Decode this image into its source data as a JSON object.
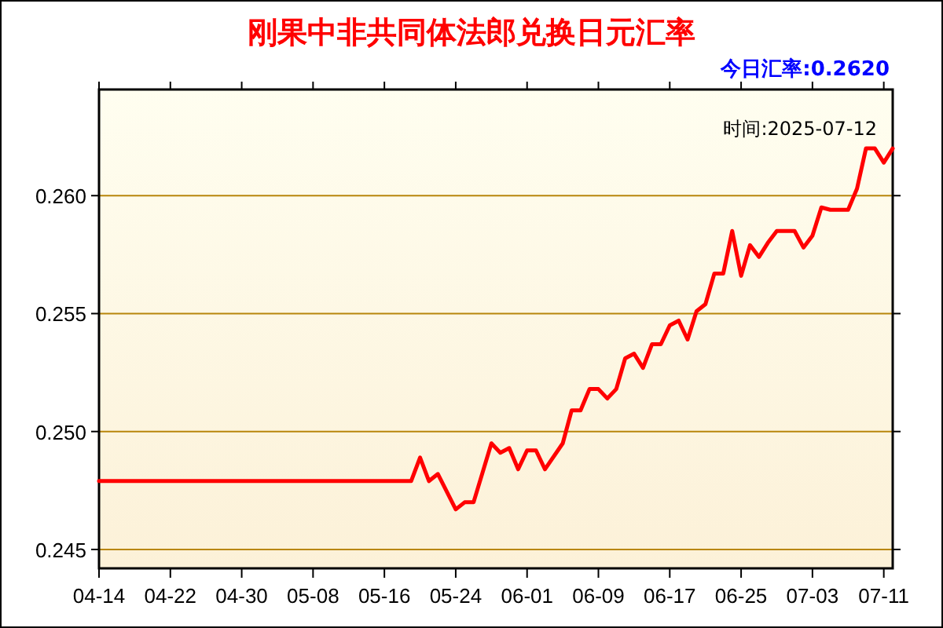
{
  "chart_data": {
    "type": "line",
    "title": "刚果中非共同体法郎兑换日元汇率",
    "annotations": [
      "今日汇率:0.2620",
      "时间:2025-07-12"
    ],
    "x": [
      "2025-04-14",
      "2025-05-19",
      "2025-05-20",
      "2025-05-21",
      "2025-05-22",
      "2025-05-24",
      "2025-05-25",
      "2025-05-26",
      "2025-05-28",
      "2025-05-29",
      "2025-05-30",
      "2025-05-31",
      "2025-06-01",
      "2025-06-02",
      "2025-06-03",
      "2025-06-05",
      "2025-06-06",
      "2025-06-07",
      "2025-06-08",
      "2025-06-09",
      "2025-06-10",
      "2025-06-11",
      "2025-06-12",
      "2025-06-13",
      "2025-06-14",
      "2025-06-15",
      "2025-06-16",
      "2025-06-17",
      "2025-06-18",
      "2025-06-19",
      "2025-06-20",
      "2025-06-21",
      "2025-06-22",
      "2025-06-23",
      "2025-06-24",
      "2025-06-25",
      "2025-06-26",
      "2025-06-27",
      "2025-06-28",
      "2025-06-29",
      "2025-07-01",
      "2025-07-02",
      "2025-07-03",
      "2025-07-04",
      "2025-07-05",
      "2025-07-07",
      "2025-07-08",
      "2025-07-09",
      "2025-07-10",
      "2025-07-11",
      "2025-07-12"
    ],
    "series": [
      {
        "color": "#ff0000",
        "values": [
          0.2479,
          0.2479,
          0.2489,
          0.2479,
          0.2482,
          0.2467,
          0.247,
          0.247,
          0.2495,
          0.2491,
          0.2493,
          0.2484,
          0.2492,
          0.2492,
          0.2484,
          0.2495,
          0.2509,
          0.2509,
          0.2518,
          0.2518,
          0.2514,
          0.2518,
          0.2531,
          0.2533,
          0.2527,
          0.2537,
          0.2537,
          0.2545,
          0.2547,
          0.2539,
          0.2551,
          0.2554,
          0.2567,
          0.2567,
          0.2585,
          0.2566,
          0.2579,
          0.2574,
          0.258,
          0.2585,
          0.2585,
          0.2578,
          0.2583,
          0.2595,
          0.2594,
          0.2594,
          0.2603,
          0.262,
          0.262,
          0.2614,
          0.262
        ]
      }
    ],
    "xlim": [
      "2025-04-14",
      "2025-07-12"
    ],
    "xticks": [
      {
        "value": "2025-04-14",
        "label": "04-14"
      },
      {
        "value": "2025-04-22",
        "label": "04-22"
      },
      {
        "value": "2025-04-30",
        "label": "04-30"
      },
      {
        "value": "2025-05-08",
        "label": "05-08"
      },
      {
        "value": "2025-05-16",
        "label": "05-16"
      },
      {
        "value": "2025-05-24",
        "label": "05-24"
      },
      {
        "value": "2025-06-01",
        "label": "06-01"
      },
      {
        "value": "2025-06-09",
        "label": "06-09"
      },
      {
        "value": "2025-06-17",
        "label": "06-17"
      },
      {
        "value": "2025-06-25",
        "label": "06-25"
      },
      {
        "value": "2025-07-03",
        "label": "07-03"
      },
      {
        "value": "2025-07-11",
        "label": "07-11"
      }
    ],
    "ylim": [
      0.2442,
      0.2645
    ],
    "yticks": [
      {
        "value": 0.245,
        "label": "0.245"
      },
      {
        "value": 0.25,
        "label": "0.250"
      },
      {
        "value": 0.255,
        "label": "0.255"
      },
      {
        "value": 0.26,
        "label": "0.260"
      }
    ],
    "grid": "y",
    "marker": "none",
    "line_style": "solid"
  }
}
